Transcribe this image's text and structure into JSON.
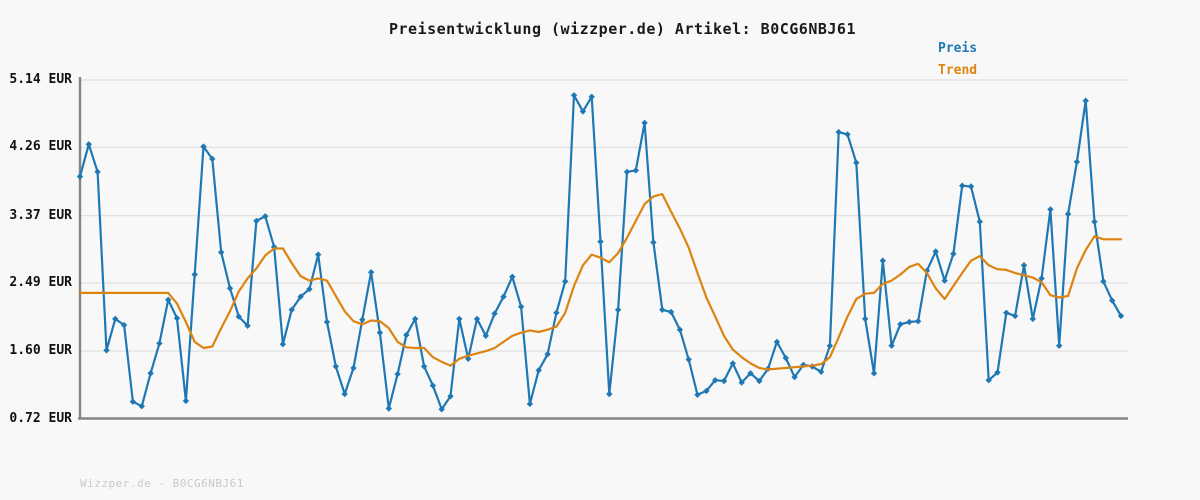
{
  "header": {
    "title": "Preisentwicklung (wizzper.de) Artikel: B0CG6NBJ61"
  },
  "footer": {
    "text": "Wizzper.de - B0CG6NBJ61"
  },
  "colors": {
    "background": "#f8f8f8",
    "grid": "#e2e2e2",
    "axis": "#848484",
    "title_text": "#1a1a1a",
    "tick_text": "#111111",
    "watermark_text": "#c9c9c9",
    "preis_blue": "#1f78b4",
    "trend_orange": "#dd830f"
  },
  "chart_data": {
    "type": "line",
    "title": "Preisentwicklung (wizzper.de) Artikel: B0CG6NBJ61",
    "xlabel": "",
    "ylabel": "",
    "x_tick_labels": [],
    "grid": true,
    "legend_position": "top-right",
    "ylim": [
      0.72,
      5.14
    ],
    "y_ticks": [
      {
        "value": 5.14,
        "label": "5.14 EUR"
      },
      {
        "value": 4.26,
        "label": "4.26 EUR"
      },
      {
        "value": 3.37,
        "label": "3.37 EUR"
      },
      {
        "value": 2.49,
        "label": "2.49 EUR"
      },
      {
        "value": 1.6,
        "label": "1.60 EUR"
      },
      {
        "value": 0.72,
        "label": "0.72 EUR"
      }
    ],
    "series": [
      {
        "name": "Preis",
        "color": "#1f78b4",
        "marker": "diamond",
        "values": [
          3.88,
          4.3,
          3.94,
          1.61,
          2.02,
          1.94,
          0.94,
          0.88,
          1.31,
          1.7,
          2.27,
          2.03,
          0.95,
          2.6,
          4.27,
          4.11,
          2.89,
          2.42,
          2.05,
          1.93,
          3.3,
          3.36,
          2.96,
          1.69,
          2.14,
          2.31,
          2.41,
          2.86,
          1.98,
          1.4,
          1.04,
          1.38,
          2.01,
          2.63,
          1.84,
          0.85,
          1.3,
          1.81,
          2.02,
          1.4,
          1.15,
          0.84,
          1.01,
          2.02,
          1.5,
          2.02,
          1.8,
          2.09,
          2.31,
          2.57,
          2.18,
          0.91,
          1.35,
          1.56,
          2.1,
          2.51,
          4.94,
          4.73,
          4.92,
          3.03,
          1.04,
          2.14,
          3.94,
          3.96,
          4.58,
          3.02,
          2.14,
          2.11,
          1.88,
          1.49,
          1.03,
          1.08,
          1.22,
          1.21,
          1.44,
          1.19,
          1.31,
          1.21,
          1.37,
          1.72,
          1.51,
          1.26,
          1.42,
          1.4,
          1.33,
          1.67,
          4.46,
          4.43,
          4.06,
          2.02,
          1.31,
          2.78,
          1.67,
          1.95,
          1.98,
          1.99,
          2.65,
          2.9,
          2.52,
          2.87,
          3.76,
          3.75,
          3.29,
          1.22,
          1.32,
          2.1,
          2.06,
          2.72,
          2.02,
          2.55,
          3.45,
          1.67,
          3.39,
          4.07,
          4.87,
          3.29,
          2.51,
          2.26,
          2.06
        ]
      },
      {
        "name": "Trend",
        "color": "#dd830f",
        "marker": "none",
        "values": [
          2.36,
          2.36,
          2.36,
          2.36,
          2.36,
          2.36,
          2.36,
          2.36,
          2.36,
          2.36,
          2.36,
          2.22,
          1.98,
          1.72,
          1.64,
          1.66,
          1.9,
          2.12,
          2.38,
          2.55,
          2.68,
          2.85,
          2.94,
          2.94,
          2.75,
          2.58,
          2.52,
          2.55,
          2.52,
          2.32,
          2.12,
          1.99,
          1.95,
          2.0,
          1.99,
          1.9,
          1.72,
          1.65,
          1.64,
          1.64,
          1.52,
          1.46,
          1.41,
          1.5,
          1.54,
          1.57,
          1.6,
          1.64,
          1.72,
          1.8,
          1.84,
          1.87,
          1.85,
          1.88,
          1.92,
          2.1,
          2.45,
          2.72,
          2.86,
          2.82,
          2.76,
          2.88,
          3.08,
          3.3,
          3.52,
          3.62,
          3.65,
          3.42,
          3.2,
          2.95,
          2.62,
          2.3,
          2.05,
          1.8,
          1.62,
          1.52,
          1.44,
          1.38,
          1.36,
          1.37,
          1.38,
          1.39,
          1.4,
          1.41,
          1.43,
          1.52,
          1.78,
          2.05,
          2.28,
          2.35,
          2.36,
          2.48,
          2.52,
          2.6,
          2.7,
          2.74,
          2.62,
          2.42,
          2.28,
          2.45,
          2.62,
          2.78,
          2.84,
          2.72,
          2.67,
          2.66,
          2.62,
          2.59,
          2.56,
          2.5,
          2.33,
          2.3,
          2.32,
          2.68,
          2.92,
          3.1,
          3.06,
          3.06,
          3.06
        ]
      }
    ]
  }
}
